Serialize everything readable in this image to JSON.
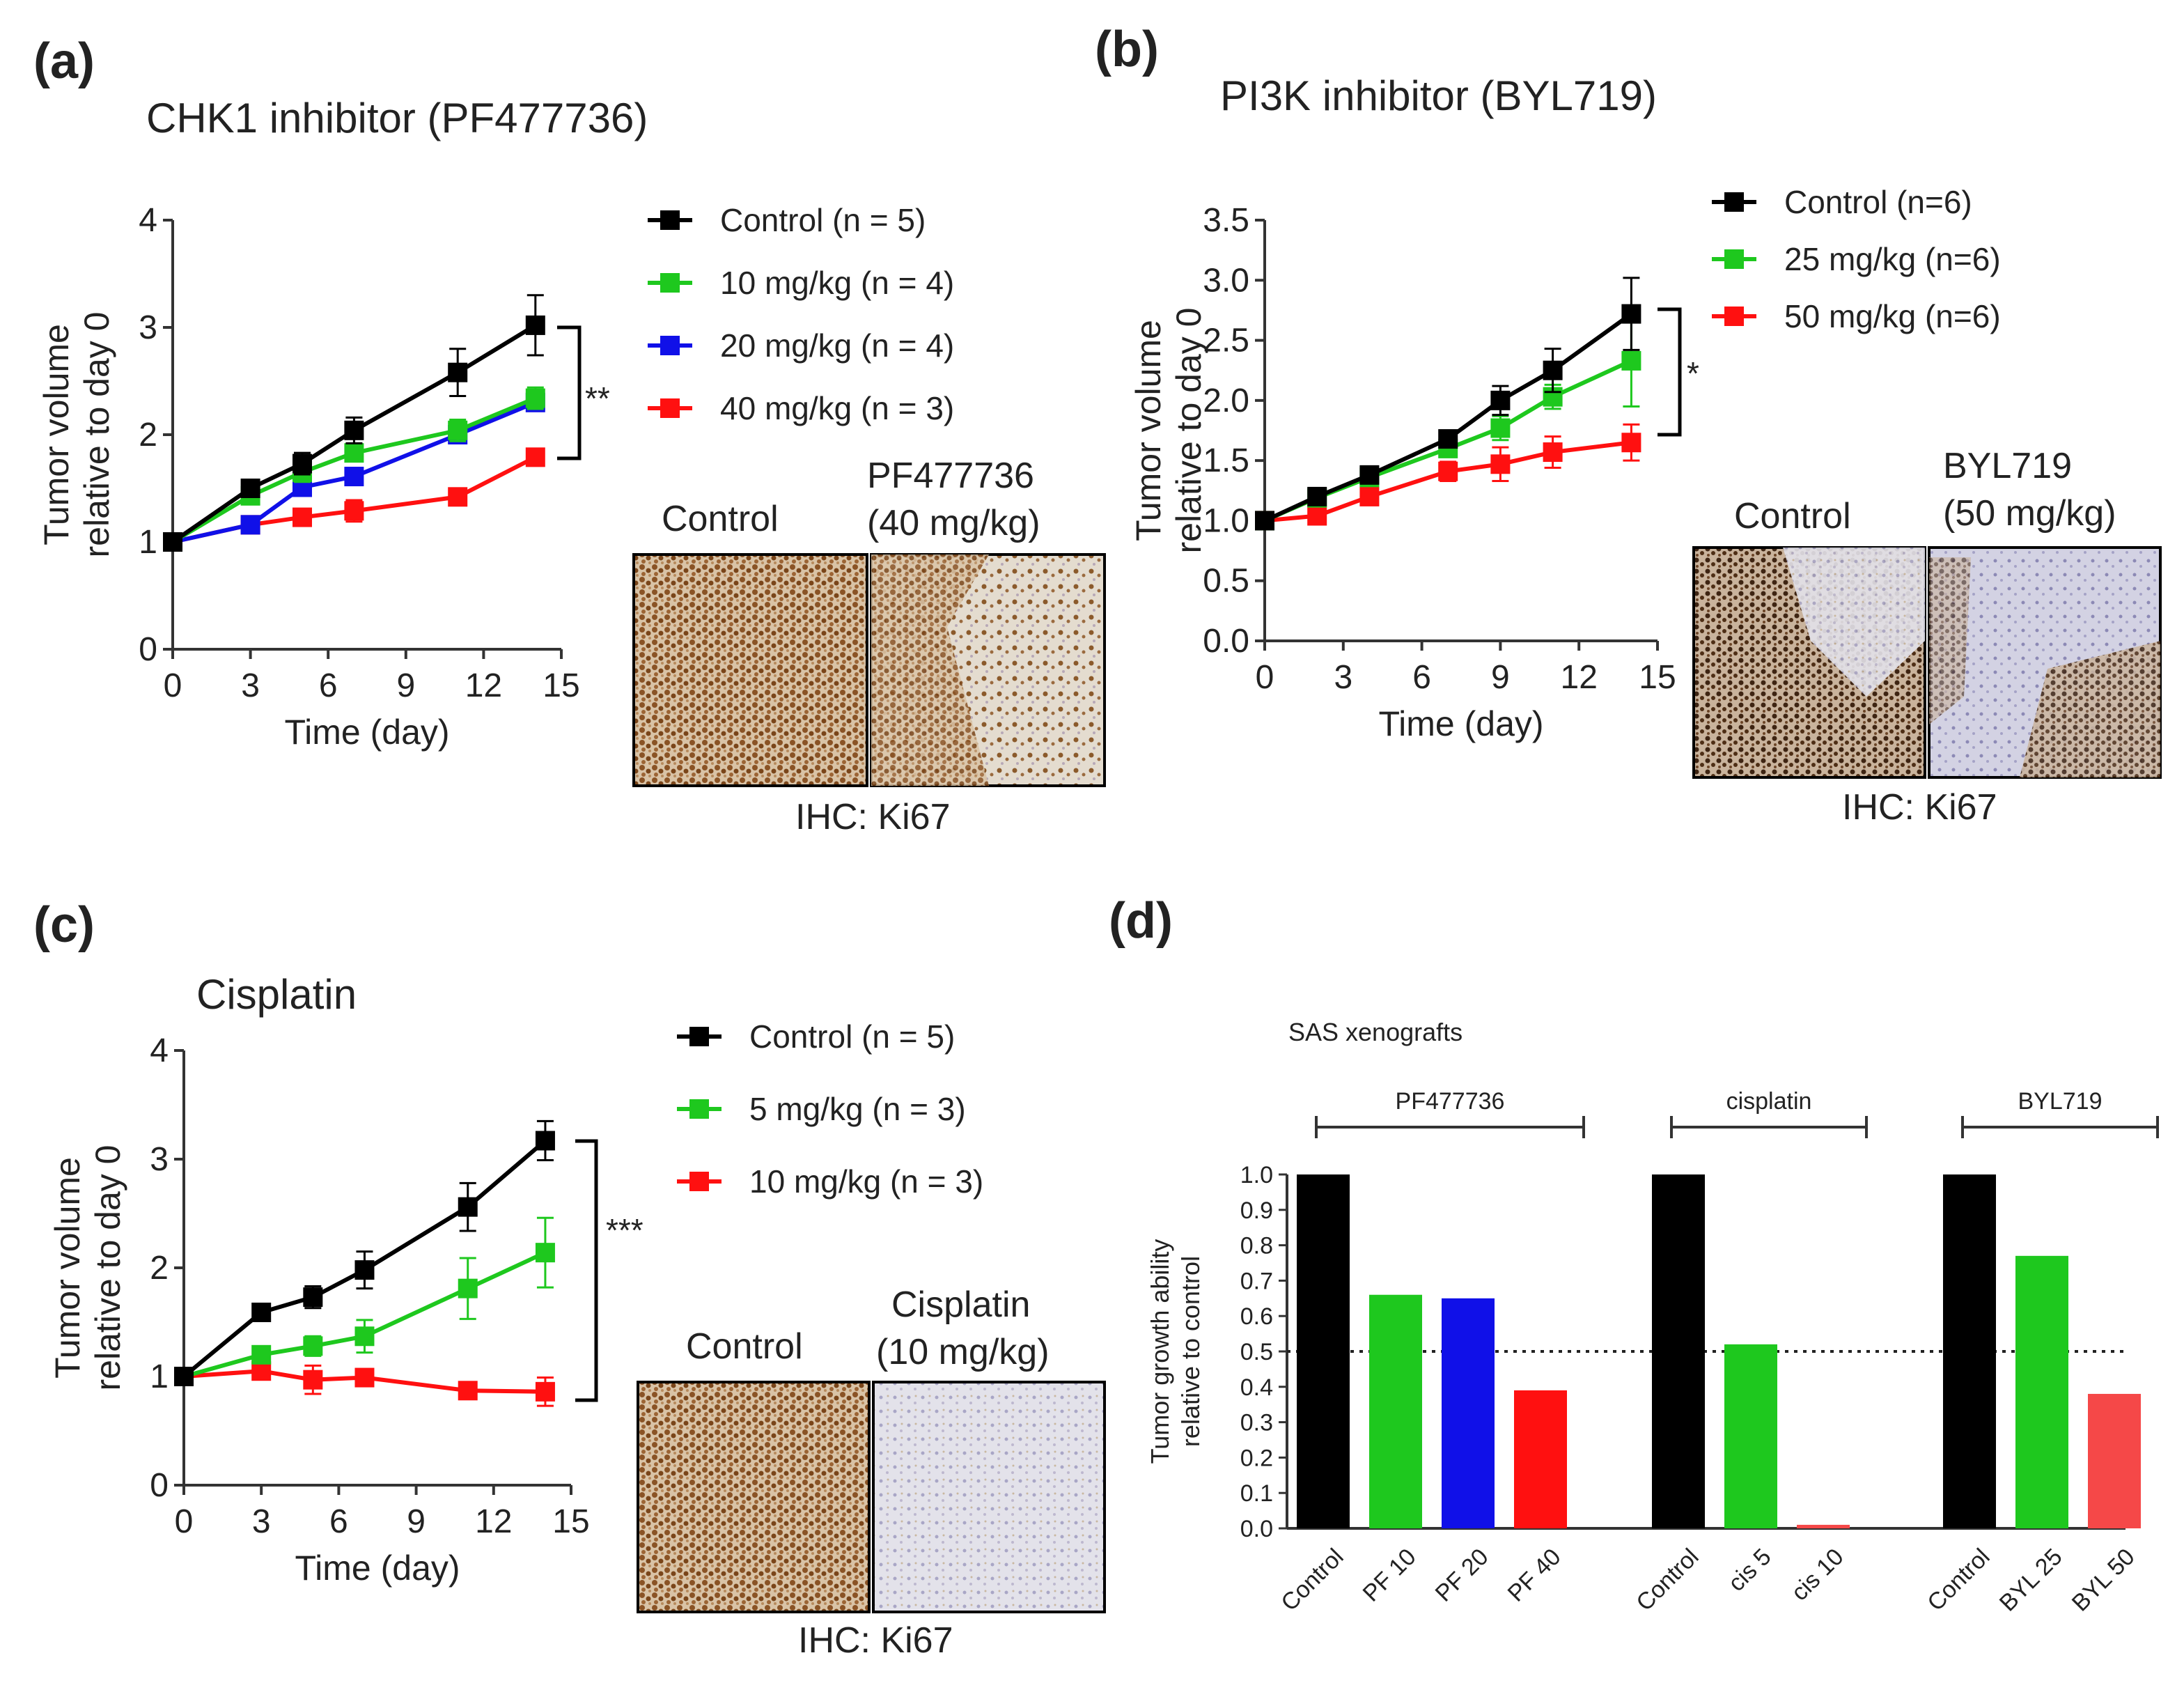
{
  "panels": {
    "a": {
      "label": "(a)",
      "title": "CHK1 inhibitor (PF477736)",
      "significance": "**",
      "ihc_labels": [
        "Control",
        "PF477736",
        "(40 mg/kg)"
      ],
      "ihc_caption": "IHC: Ki67"
    },
    "b": {
      "label": "(b)",
      "title": "PI3K inhibitor (BYL719)",
      "significance": "*",
      "ihc_labels": [
        "Control",
        "BYL719",
        "(50 mg/kg)"
      ],
      "ihc_caption": "IHC: Ki67"
    },
    "c": {
      "label": "(c)",
      "title": "Cisplatin",
      "significance": "***",
      "ihc_labels": [
        "Control",
        "Cisplatin",
        "(10 mg/kg)"
      ],
      "ihc_caption": "IHC: Ki67"
    },
    "d": {
      "label": "(d)",
      "title": "SAS xenografts"
    }
  },
  "colors": {
    "black": "#000000",
    "green": "#1ec81e",
    "blue": "#1010e8",
    "red": "#ff1010",
    "lightred": "#f54848"
  },
  "chart_data": [
    {
      "id": "a",
      "type": "line",
      "xlabel": "Time (day)",
      "ylabel": [
        "Tumor volume",
        "relative to  day 0"
      ],
      "xlim": [
        0,
        15
      ],
      "ylim": [
        0,
        4
      ],
      "xticks": [
        0,
        3,
        6,
        9,
        12,
        15
      ],
      "yticks": [
        0,
        1,
        2,
        3,
        4
      ],
      "x": [
        0,
        3,
        5,
        7,
        11,
        14
      ],
      "series": [
        {
          "name": "Control (n = 5)",
          "color": "black",
          "values": [
            1.0,
            1.5,
            1.73,
            2.04,
            2.58,
            3.02
          ],
          "err": [
            0,
            0.07,
            0.1,
            0.12,
            0.22,
            0.28
          ]
        },
        {
          "name": "10 mg/kg (n = 4)",
          "color": "green",
          "values": [
            1.0,
            1.43,
            1.65,
            1.83,
            2.04,
            2.34
          ],
          "err": [
            0,
            0.06,
            0.09,
            0.08,
            0.1,
            0.1
          ]
        },
        {
          "name": "20 mg/kg (n = 4)",
          "color": "blue",
          "values": [
            1.0,
            1.16,
            1.51,
            1.61,
            2.0,
            2.3
          ],
          "err": [
            0,
            0.05,
            0.07,
            0.08,
            0.08,
            0.07
          ]
        },
        {
          "name": "40 mg/kg (n = 3)",
          "color": "red",
          "values": [
            1.0,
            1.16,
            1.23,
            1.29,
            1.42,
            1.79
          ],
          "err": [
            0,
            0.05,
            0.05,
            0.1,
            0.06,
            0.08
          ]
        }
      ]
    },
    {
      "id": "b",
      "type": "line",
      "xlabel": "Time (day)",
      "ylabel": [
        "Tumor volume",
        "relative to day 0"
      ],
      "xlim": [
        0,
        15
      ],
      "ylim": [
        0,
        3.5
      ],
      "xticks": [
        0,
        3,
        6,
        9,
        12,
        15
      ],
      "yticks": [
        0.0,
        0.5,
        1.0,
        1.5,
        2.0,
        2.5,
        3.0,
        3.5
      ],
      "x": [
        0,
        2,
        4,
        7,
        9,
        11,
        14
      ],
      "series": [
        {
          "name": "Control (n=6)",
          "color": "black",
          "values": [
            1.0,
            1.2,
            1.38,
            1.68,
            2.0,
            2.25,
            2.72
          ],
          "err": [
            0,
            0.04,
            0.06,
            0.06,
            0.12,
            0.18,
            0.3
          ]
        },
        {
          "name": "25 mg/kg  (n=6)",
          "color": "green",
          "values": [
            1.0,
            1.19,
            1.36,
            1.6,
            1.77,
            2.03,
            2.33
          ],
          "err": [
            0,
            0.04,
            0.05,
            0.07,
            0.1,
            0.1,
            0.38
          ]
        },
        {
          "name": "50 mg/kg  (n=6)",
          "color": "red",
          "values": [
            1.0,
            1.04,
            1.2,
            1.41,
            1.47,
            1.57,
            1.65
          ],
          "err": [
            0,
            0.04,
            0.05,
            0.08,
            0.14,
            0.13,
            0.15
          ]
        }
      ]
    },
    {
      "id": "c",
      "type": "line",
      "xlabel": "Time (day)",
      "ylabel": [
        "Tumor volume",
        "relative to  day 0"
      ],
      "xlim": [
        0,
        15
      ],
      "ylim": [
        0,
        4
      ],
      "xticks": [
        0,
        3,
        6,
        9,
        12,
        15
      ],
      "yticks": [
        0,
        1,
        2,
        3,
        4
      ],
      "x": [
        0,
        3,
        5,
        7,
        11,
        14
      ],
      "series": [
        {
          "name": "Control (n = 5)",
          "color": "black",
          "values": [
            1.0,
            1.59,
            1.73,
            1.98,
            2.56,
            3.17
          ],
          "err": [
            0,
            0.06,
            0.1,
            0.17,
            0.22,
            0.18
          ]
        },
        {
          "name": "5 mg/kg (n = 3)",
          "color": "green",
          "values": [
            1.0,
            1.2,
            1.28,
            1.37,
            1.81,
            2.14
          ],
          "err": [
            0,
            0.04,
            0.09,
            0.15,
            0.28,
            0.32
          ]
        },
        {
          "name": "10 mg/kg (n = 3)",
          "color": "red",
          "values": [
            1.0,
            1.05,
            0.97,
            0.99,
            0.87,
            0.86
          ],
          "err": [
            0,
            0.04,
            0.13,
            0.06,
            0.04,
            0.13
          ]
        }
      ]
    },
    {
      "id": "d",
      "type": "bar",
      "title": "SAS xenografts",
      "ylabel": [
        "Tumor growth ability",
        "relative to control"
      ],
      "ylim": [
        0,
        1.0
      ],
      "yticks": [
        0.0,
        0.1,
        0.2,
        0.3,
        0.4,
        0.5,
        0.6,
        0.7,
        0.8,
        0.9,
        1.0
      ],
      "reference_line": 0.5,
      "groups": [
        {
          "name": "PF477736",
          "categories": [
            "Control",
            "PF 10",
            "PF 20",
            "PF 40"
          ],
          "values": [
            1.0,
            0.66,
            0.65,
            0.39
          ],
          "colors": [
            "black",
            "green",
            "blue",
            "red"
          ]
        },
        {
          "name": "cisplatin",
          "categories": [
            "Control",
            "cis 5",
            "cis 10"
          ],
          "values": [
            1.0,
            0.52,
            0.01
          ],
          "colors": [
            "black",
            "green",
            "lightred"
          ]
        },
        {
          "name": "BYL719",
          "categories": [
            "Control",
            "BYL 25",
            "BYL 50"
          ],
          "values": [
            1.0,
            0.77,
            0.38
          ],
          "colors": [
            "black",
            "green",
            "lightred"
          ]
        }
      ]
    }
  ]
}
